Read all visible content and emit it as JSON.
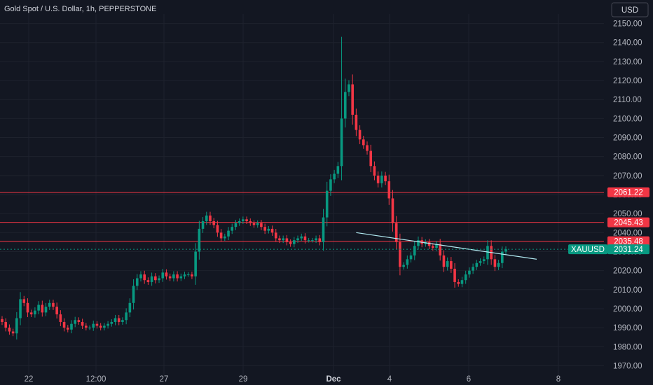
{
  "header": {
    "title": "Gold Spot / U.S. Dollar, 1h, PEPPERSTONE"
  },
  "currency_button": {
    "label": "USD"
  },
  "chart_data": {
    "type": "candlestick",
    "title": "Gold Spot / U.S. Dollar, 1h, PEPPERSTONE",
    "symbol": "XAUUSD",
    "currency": "USD",
    "y_range": [
      1965,
      2155
    ],
    "y_ticks": [
      1970,
      1980,
      1990,
      2000,
      2010,
      2020,
      2030,
      2040,
      2050,
      2060,
      2070,
      2080,
      2090,
      2100,
      2110,
      2120,
      2130,
      2140,
      2150
    ],
    "y_tick_labels": [
      "1970.00",
      "1980.00",
      "1990.00",
      "2000.00",
      "2010.00",
      "2020.00",
      "2030.00",
      "2040.00",
      "2050.00",
      "2060.00",
      "2070.00",
      "2080.00",
      "2090.00",
      "2100.00",
      "2110.00",
      "2120.00",
      "2130.00",
      "2140.00",
      "2150.00"
    ],
    "x_ticks": [
      "22",
      "12:00",
      "27",
      "29",
      "Dec",
      "4",
      "6",
      "8"
    ],
    "grid": true,
    "price_path": [
      1993,
      1990,
      1988,
      1987,
      1995,
      2005,
      2003,
      1998,
      1997,
      1999,
      2002,
      1998,
      2001,
      2003,
      2001,
      1997,
      1993,
      1990,
      1989,
      1992,
      1994,
      1993,
      1991,
      1990,
      1990,
      1992,
      1991,
      1990,
      1991,
      1992,
      1993,
      1995,
      1993,
      1994,
      1998,
      2003,
      2012,
      2016,
      2018,
      2015,
      2014,
      2017,
      2015,
      2016,
      2019,
      2017,
      2016,
      2018,
      2016,
      2017,
      2018,
      2018,
      2017,
      2030,
      2042,
      2046,
      2049,
      2046,
      2044,
      2040,
      2037,
      2038,
      2041,
      2043,
      2045,
      2046,
      2047,
      2046,
      2045,
      2044,
      2045,
      2043,
      2041,
      2042,
      2040,
      2037,
      2036,
      2037,
      2035,
      2034,
      2036,
      2037,
      2038,
      2036,
      2036,
      2036,
      2037,
      2035,
      2048,
      2062,
      2068,
      2071,
      2075,
      2100,
      2114,
      2118,
      2102,
      2094,
      2089,
      2086,
      2083,
      2075,
      2070,
      2066,
      2070,
      2067,
      2058,
      2045,
      2035,
      2022,
      2023,
      2026,
      2028,
      2033,
      2036,
      2034,
      2035,
      2033,
      2032,
      2034,
      2028,
      2022,
      2025,
      2021,
      2014,
      2013,
      2015,
      2018,
      2020,
      2022,
      2024,
      2025,
      2026,
      2033,
      2026,
      2022,
      2024,
      2030,
      2031.24
    ],
    "horizontal_levels": [
      {
        "price": 2061.22,
        "label": "2061.22",
        "color": "#f23645"
      },
      {
        "price": 2045.43,
        "label": "2045.43",
        "color": "#f23645"
      },
      {
        "price": 2035.48,
        "label": "2035.48",
        "color": "#f23645"
      }
    ],
    "trendline": {
      "from": {
        "bar": 97,
        "price": 2040
      },
      "to": {
        "bar": 130,
        "price": 2028
      },
      "color": "#b2ebf2"
    },
    "last_price": {
      "price": 2031.24,
      "label": "2031.24",
      "symbol_label": "XAUUSD",
      "color": "#089981"
    },
    "colors": {
      "up": "#089981",
      "down": "#f23645",
      "background": "#131722",
      "grid": "#1e222d"
    }
  }
}
